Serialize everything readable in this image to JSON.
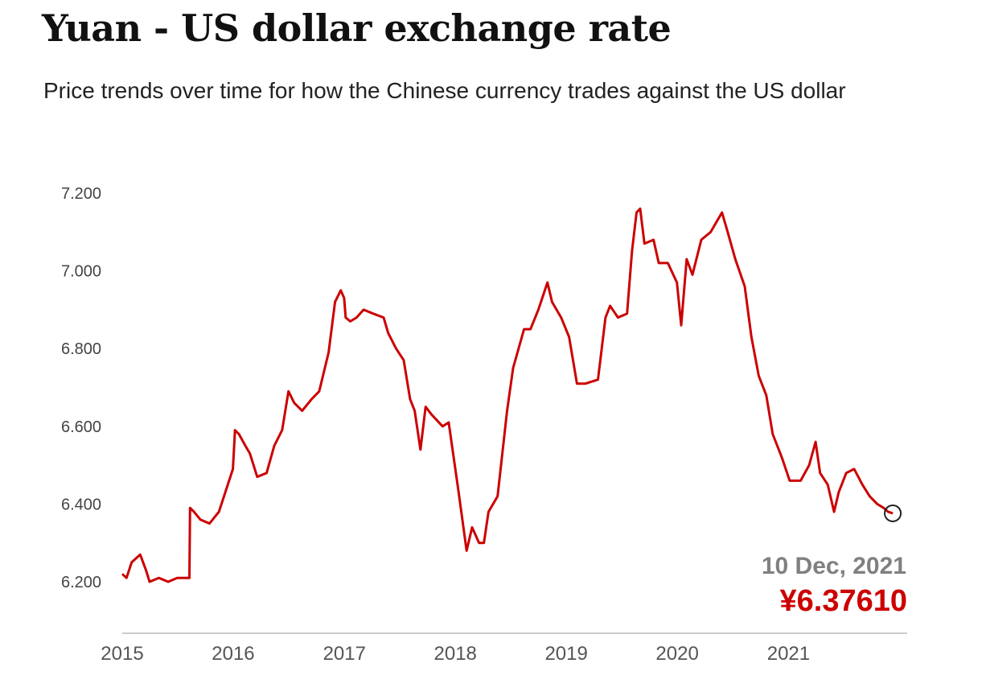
{
  "header": {
    "title": "Yuan - US dollar exchange rate",
    "subtitle": "Price trends over time for how the Chinese currency trades against the US dollar"
  },
  "colors": {
    "line": "#cc0000",
    "axis": "#cccccc",
    "marker": "#222222",
    "annotation_date": "#808080",
    "annotation_value": "#cc0000"
  },
  "chart_data": {
    "type": "line",
    "title": "Yuan - US dollar exchange rate",
    "subtitle": "Price trends over time for how the Chinese currency trades against the US dollar",
    "xlabel": "",
    "ylabel": "",
    "x_ticks": [
      "2015",
      "2016",
      "2017",
      "2018",
      "2019",
      "2020",
      "2021"
    ],
    "y_ticks": [
      "6.200",
      "6.400",
      "6.600",
      "6.800",
      "7.000",
      "7.200"
    ],
    "xlim": [
      "2015-01-01",
      "2021-12-31"
    ],
    "ylim": [
      6.17,
      7.23
    ],
    "grid": false,
    "legend": "none",
    "series": [
      {
        "x": [
          "2015-01-01",
          "2015-01-15",
          "2015-02-01",
          "2015-02-15",
          "2015-03-01",
          "2015-03-20",
          "2015-04-01",
          "2015-05-01",
          "2015-06-01",
          "2015-07-01",
          "2015-08-10",
          "2015-08-12",
          "2015-08-25",
          "2015-09-15",
          "2015-10-15",
          "2015-11-15",
          "2015-12-31",
          "2016-01-07",
          "2016-01-20",
          "2016-02-10",
          "2016-02-25",
          "2016-03-20",
          "2016-04-20",
          "2016-05-15",
          "2016-06-10",
          "2016-07-01",
          "2016-07-20",
          "2016-08-15",
          "2016-09-15",
          "2016-10-10",
          "2016-11-10",
          "2016-12-01",
          "2016-12-20",
          "2016-12-31",
          "2017-01-05",
          "2017-01-20",
          "2017-02-10",
          "2017-03-05",
          "2017-04-05",
          "2017-05-10",
          "2017-05-25",
          "2017-06-20",
          "2017-07-15",
          "2017-08-05",
          "2017-08-20",
          "2017-09-08",
          "2017-09-25",
          "2017-10-15",
          "2017-11-20",
          "2017-12-10",
          "2018-01-10",
          "2018-02-07",
          "2018-02-25",
          "2018-03-20",
          "2018-04-05",
          "2018-04-20",
          "2018-05-20",
          "2018-06-20",
          "2018-07-10",
          "2018-08-15",
          "2018-09-05",
          "2018-10-01",
          "2018-10-31",
          "2018-11-15",
          "2018-12-15",
          "2019-01-10",
          "2019-02-05",
          "2019-03-05",
          "2019-04-15",
          "2019-05-10",
          "2019-05-25",
          "2019-06-20",
          "2019-07-20",
          "2019-08-05",
          "2019-08-20",
          "2019-09-01",
          "2019-09-15",
          "2019-10-15",
          "2019-11-01",
          "2019-12-01",
          "2019-12-31",
          "2020-01-14",
          "2020-02-01",
          "2020-02-20",
          "2020-03-20",
          "2020-04-20",
          "2020-05-27",
          "2020-06-15",
          "2020-07-10",
          "2020-08-10",
          "2020-09-01",
          "2020-09-25",
          "2020-10-20",
          "2020-11-10",
          "2020-12-10",
          "2021-01-05",
          "2021-02-10",
          "2021-03-10",
          "2021-03-31",
          "2021-04-15",
          "2021-05-10",
          "2021-05-31",
          "2021-06-15",
          "2021-07-10",
          "2021-08-05",
          "2021-09-01",
          "2021-09-25",
          "2021-10-20",
          "2021-11-10",
          "2021-11-25",
          "2021-12-10"
        ],
        "values": [
          6.22,
          6.21,
          6.25,
          6.26,
          6.27,
          6.23,
          6.2,
          6.21,
          6.2,
          6.21,
          6.21,
          6.39,
          6.38,
          6.36,
          6.35,
          6.38,
          6.49,
          6.59,
          6.58,
          6.55,
          6.53,
          6.47,
          6.48,
          6.55,
          6.59,
          6.69,
          6.66,
          6.64,
          6.67,
          6.69,
          6.79,
          6.92,
          6.95,
          6.93,
          6.88,
          6.87,
          6.88,
          6.9,
          6.89,
          6.88,
          6.84,
          6.8,
          6.77,
          6.67,
          6.64,
          6.54,
          6.65,
          6.63,
          6.6,
          6.61,
          6.44,
          6.28,
          6.34,
          6.3,
          6.3,
          6.38,
          6.42,
          6.64,
          6.75,
          6.85,
          6.85,
          6.9,
          6.97,
          6.92,
          6.88,
          6.83,
          6.71,
          6.71,
          6.72,
          6.88,
          6.91,
          6.88,
          6.89,
          7.05,
          7.15,
          7.16,
          7.07,
          7.08,
          7.02,
          7.02,
          6.97,
          6.86,
          7.03,
          6.99,
          7.08,
          7.1,
          7.15,
          7.1,
          7.03,
          6.96,
          6.83,
          6.73,
          6.68,
          6.58,
          6.52,
          6.46,
          6.46,
          6.5,
          6.56,
          6.48,
          6.45,
          6.38,
          6.43,
          6.48,
          6.49,
          6.45,
          6.42,
          6.4,
          6.39,
          6.38,
          6.3761
        ]
      }
    ],
    "annotations": [
      {
        "x": "2021-12-10",
        "label_date": "10 Dec, 2021",
        "label_value": "¥6.37610"
      }
    ]
  }
}
